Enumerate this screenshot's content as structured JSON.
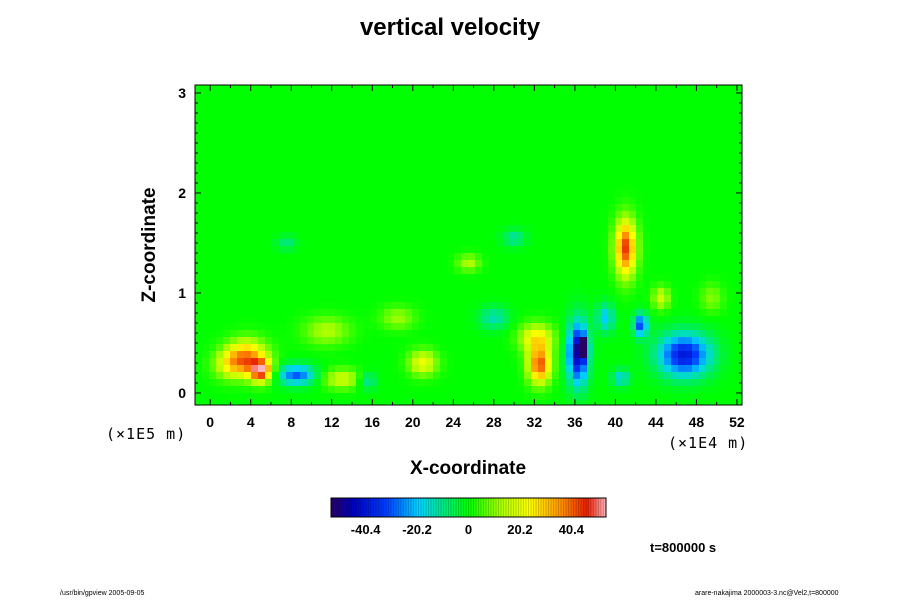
{
  "chart_data": {
    "type": "heatmap",
    "title": "vertical velocity",
    "xlabel": "X-coordinate",
    "ylabel": "Z-coordinate",
    "x_unit": "(×1E4 m)",
    "y_unit": "(×1E5 m)",
    "xlim": [
      -1.5,
      52.5
    ],
    "ylim": [
      -0.12,
      3.08
    ],
    "x_ticks": [
      0,
      4,
      8,
      12,
      16,
      20,
      24,
      28,
      32,
      36,
      40,
      44,
      48,
      52
    ],
    "y_ticks": [
      0,
      1,
      2,
      3
    ],
    "background_value": 0,
    "features": [
      {
        "x": 3.6,
        "z": 0.36,
        "sx": 1.4,
        "sz": 0.12,
        "value": 34
      },
      {
        "x": 5.0,
        "z": 0.22,
        "sx": 0.8,
        "sz": 0.08,
        "value": 44
      },
      {
        "x": 2.0,
        "z": 0.28,
        "sx": 1.2,
        "sz": 0.1,
        "value": 18
      },
      {
        "x": 8.5,
        "z": 0.18,
        "sx": 1.3,
        "sz": 0.07,
        "value": -30
      },
      {
        "x": 13.0,
        "z": 0.14,
        "sx": 1.3,
        "sz": 0.07,
        "value": 18
      },
      {
        "x": 15.5,
        "z": 0.12,
        "sx": 0.6,
        "sz": 0.06,
        "value": -14
      },
      {
        "x": 21.0,
        "z": 0.3,
        "sx": 1.0,
        "sz": 0.09,
        "value": 22
      },
      {
        "x": 32.5,
        "z": 0.28,
        "sx": 0.8,
        "sz": 0.13,
        "value": 42
      },
      {
        "x": 32.2,
        "z": 0.55,
        "sx": 1.2,
        "sz": 0.1,
        "value": 24
      },
      {
        "x": 36.3,
        "z": 0.4,
        "sx": 0.7,
        "sz": 0.22,
        "value": -46
      },
      {
        "x": 36.8,
        "z": 0.45,
        "sx": 0.3,
        "sz": 0.06,
        "value": -60
      },
      {
        "x": 41.0,
        "z": 1.45,
        "sx": 0.75,
        "sz": 0.2,
        "value": 44
      },
      {
        "x": 39.0,
        "z": 0.75,
        "sx": 0.6,
        "sz": 0.1,
        "value": -20
      },
      {
        "x": 42.5,
        "z": 0.68,
        "sx": 0.5,
        "sz": 0.08,
        "value": -32
      },
      {
        "x": 44.5,
        "z": 0.95,
        "sx": 0.6,
        "sz": 0.08,
        "value": 18
      },
      {
        "x": 46.8,
        "z": 0.38,
        "sx": 1.8,
        "sz": 0.15,
        "value": -40
      },
      {
        "x": 40.5,
        "z": 0.15,
        "sx": 0.6,
        "sz": 0.06,
        "value": -18
      },
      {
        "x": 28.0,
        "z": 0.75,
        "sx": 1.0,
        "sz": 0.08,
        "value": -14
      },
      {
        "x": 25.5,
        "z": 1.3,
        "sx": 0.8,
        "sz": 0.06,
        "value": 14
      },
      {
        "x": 11.5,
        "z": 0.62,
        "sx": 1.6,
        "sz": 0.1,
        "value": 14
      },
      {
        "x": 18.5,
        "z": 0.75,
        "sx": 1.2,
        "sz": 0.08,
        "value": 12
      },
      {
        "x": 30.0,
        "z": 1.55,
        "sx": 0.8,
        "sz": 0.06,
        "value": -12
      },
      {
        "x": 49.5,
        "z": 0.95,
        "sx": 0.8,
        "sz": 0.1,
        "value": 10
      },
      {
        "x": 7.5,
        "z": 1.5,
        "sx": 0.7,
        "sz": 0.05,
        "value": -10
      }
    ],
    "colorbar": {
      "vmin": -54,
      "vmax": 54,
      "tick_values": [
        -40.4,
        -20.2,
        0,
        20.2,
        40.4
      ],
      "tick_labels": [
        "-40.4",
        "-20.2",
        "0",
        "20.2",
        "40.4"
      ]
    }
  },
  "annotations": {
    "time": "t=800000 s",
    "footer_left": "/usr/bin/gpview 2005-09-05",
    "footer_right": "arare-nakajima  2000003-3.nc@Vel2,t=800000"
  }
}
